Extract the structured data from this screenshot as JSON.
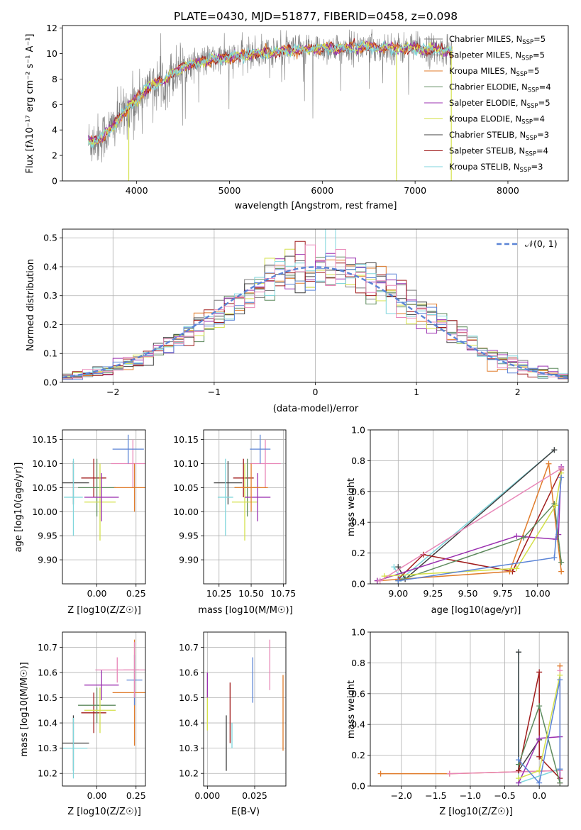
{
  "colors": {
    "chabrier_miles": "#7f7f7f",
    "salpeter_miles": "#8c8c8c",
    "kroupa_miles": "#e07b2a",
    "chabrier_elodie": "#5d8a5d",
    "salpeter_elodie": "#9b30b0",
    "kroupa_elodie": "#d4e04a",
    "chabrier_stelib": "#404040",
    "salpeter_stelib": "#a01c1c",
    "kroupa_stelib": "#7fd6dc",
    "pink": "#e887b8",
    "blue": "#5b84d6",
    "normal": "#5b84d6"
  },
  "chart_data": [
    {
      "id": "spectrum",
      "type": "line",
      "title": "PLATE=0430, MJD=51877, FIBERID=0458, z=0.098",
      "xlabel": "wavelength [Angstrom, rest frame]",
      "ylabel": "Flux [f_λ 10^-17 erg cm^-2 s^-1 A^-1]",
      "xlim": [
        3200,
        8650
      ],
      "ylim": [
        0,
        12.2
      ],
      "xticks": [
        "4000",
        "5000",
        "6000",
        "7000",
        "8000"
      ],
      "yticks": [
        "0",
        "2",
        "4",
        "6",
        "8",
        "10",
        "12"
      ],
      "legend_position": "right",
      "legend": [
        {
          "label": "Chabrier MILES, N_SSP=5",
          "color": "#7f7f7f"
        },
        {
          "label": "Salpeter MILES, N_SSP=5",
          "color": "#8c8c8c"
        },
        {
          "label": "Kroupa MILES, N_SSP=5",
          "color": "#e07b2a"
        },
        {
          "label": "Chabrier ELODIE, N_SSP=4",
          "color": "#5d8a5d"
        },
        {
          "label": "Salpeter ELODIE, N_SSP=5",
          "color": "#9b30b0"
        },
        {
          "label": "Kroupa ELODIE, N_SSP=4",
          "color": "#d4e04a"
        },
        {
          "label": "Chabrier STELIB, N_SSP=3",
          "color": "#404040"
        },
        {
          "label": "Salpeter STELIB, N_SSP=4",
          "color": "#a01c1c"
        },
        {
          "label": "Kroupa STELIB, N_SSP=3",
          "color": "#7fd6dc"
        }
      ],
      "model_curve": {
        "x": [
          3500,
          3600,
          3700,
          3800,
          3900,
          4000,
          4100,
          4200,
          4300,
          4400,
          4500,
          4600,
          4800,
          5000,
          5200,
          5400,
          5600,
          5800,
          6000,
          6200,
          6400,
          6600,
          6800,
          7000,
          7200,
          7400
        ],
        "y": [
          3.1,
          3.3,
          3.9,
          4.8,
          5.7,
          6.4,
          7.2,
          7.6,
          7.9,
          8.5,
          9.0,
          9.2,
          9.5,
          9.7,
          9.9,
          10.1,
          10.2,
          10.3,
          10.4,
          10.4,
          10.5,
          10.5,
          10.4,
          10.4,
          10.3,
          10.2
        ]
      },
      "dips": [
        {
          "x": 3915,
          "y": 0
        },
        {
          "x": 6800,
          "y": 0
        },
        {
          "x": 7390,
          "y": 0
        }
      ]
    },
    {
      "id": "residuals",
      "type": "histogram",
      "xlabel": "(data-model)/error",
      "ylabel": "Normed distribution",
      "xlim": [
        -2.5,
        2.5
      ],
      "ylim": [
        0,
        0.53
      ],
      "xticks": [
        "−2",
        "−1",
        "0",
        "1",
        "2"
      ],
      "yticks": [
        "0.0",
        "0.1",
        "0.2",
        "0.3",
        "0.4",
        "0.5"
      ],
      "legend": [
        {
          "label": "𝒩(0, 1)",
          "style": "dashed",
          "color": "#5b84d6"
        }
      ],
      "legend_position": "top-right",
      "bin_width": 0.1
    },
    {
      "id": "age_vs_z",
      "type": "errorbar",
      "xlabel": "Z [log10(Z/Z☉)]",
      "ylabel": "age [log10(age/yr)]",
      "xlim": [
        -0.22,
        0.31
      ],
      "ylim": [
        9.85,
        10.17
      ],
      "xticks": [
        "0.00",
        "0.25"
      ],
      "yticks": [
        "9.90",
        "9.95",
        "10.00",
        "10.05",
        "10.10",
        "10.15"
      ],
      "points": [
        {
          "x": -0.15,
          "y": 10.06,
          "xerr": 0.1,
          "yerr": 0.045,
          "color": "#404040"
        },
        {
          "x": -0.15,
          "y": 10.03,
          "xerr": 0.06,
          "yerr": 0.08,
          "color": "#7fd6dc"
        },
        {
          "x": -0.02,
          "y": 10.07,
          "xerr": 0.08,
          "yerr": 0.04,
          "color": "#a01c1c"
        },
        {
          "x": 0.0,
          "y": 10.05,
          "xerr": 0.12,
          "yerr": 0.06,
          "color": "#5d8a5d"
        },
        {
          "x": 0.02,
          "y": 10.02,
          "xerr": 0.1,
          "yerr": 0.08,
          "color": "#d4e04a"
        },
        {
          "x": 0.03,
          "y": 10.03,
          "xerr": 0.11,
          "yerr": 0.05,
          "color": "#9b30b0"
        },
        {
          "x": 0.23,
          "y": 10.1,
          "xerr": 0.14,
          "yerr": 0.05,
          "color": "#e887b8"
        },
        {
          "x": 0.24,
          "y": 10.05,
          "xerr": 0.13,
          "yerr": 0.05,
          "color": "#e07b2a"
        },
        {
          "x": 0.2,
          "y": 10.13,
          "xerr": 0.1,
          "yerr": 0.03,
          "color": "#5b84d6"
        }
      ]
    },
    {
      "id": "age_vs_mass",
      "type": "errorbar",
      "xlabel": "mass [log10(M/M☉)]",
      "ylabel": "",
      "xlim": [
        10.13,
        10.77
      ],
      "ylim": [
        9.85,
        10.17
      ],
      "xticks": [
        "10.25",
        "10.50",
        "10.75"
      ],
      "yticks": [
        "9.90",
        "9.95",
        "10.00",
        "10.05",
        "10.10",
        "10.15"
      ],
      "points": [
        {
          "x": 10.32,
          "y": 10.06,
          "xerr": 0.11,
          "yerr": 0.045,
          "color": "#404040"
        },
        {
          "x": 10.3,
          "y": 10.03,
          "xerr": 0.06,
          "yerr": 0.08,
          "color": "#7fd6dc"
        },
        {
          "x": 10.44,
          "y": 10.07,
          "xerr": 0.08,
          "yerr": 0.04,
          "color": "#a01c1c"
        },
        {
          "x": 10.47,
          "y": 10.05,
          "xerr": 0.1,
          "yerr": 0.06,
          "color": "#5d8a5d"
        },
        {
          "x": 10.45,
          "y": 10.02,
          "xerr": 0.1,
          "yerr": 0.08,
          "color": "#d4e04a"
        },
        {
          "x": 10.55,
          "y": 10.03,
          "xerr": 0.1,
          "yerr": 0.05,
          "color": "#9b30b0"
        },
        {
          "x": 10.61,
          "y": 10.1,
          "xerr": 0.12,
          "yerr": 0.05,
          "color": "#e887b8"
        },
        {
          "x": 10.5,
          "y": 10.05,
          "xerr": 0.13,
          "yerr": 0.05,
          "color": "#e07b2a"
        },
        {
          "x": 10.57,
          "y": 10.13,
          "xerr": 0.08,
          "yerr": 0.03,
          "color": "#5b84d6"
        }
      ]
    },
    {
      "id": "mass_weight_vs_age",
      "type": "line",
      "xlabel": "age [log10(age/yr)]",
      "ylabel": "mass weight",
      "xlim": [
        8.8,
        10.22
      ],
      "ylim": [
        0,
        1.0
      ],
      "xticks": [
        "9.00",
        "9.25",
        "9.50",
        "9.75",
        "10.00"
      ],
      "yticks": [
        "0.0",
        "0.2",
        "0.4",
        "0.6",
        "0.8",
        "1.0"
      ],
      "series": [
        {
          "color": "#7fd6dc",
          "x": [
            8.97,
            9.02,
            10.12
          ],
          "y": [
            0.11,
            0.03,
            0.87
          ]
        },
        {
          "color": "#404040",
          "x": [
            9.0,
            9.05,
            10.12
          ],
          "y": [
            0.11,
            0.03,
            0.87
          ]
        },
        {
          "color": "#a01c1c",
          "x": [
            9.0,
            9.18,
            9.82,
            10.17
          ],
          "y": [
            0.03,
            0.19,
            0.08,
            0.74
          ]
        },
        {
          "color": "#e07b2a",
          "x": [
            8.85,
            9.8,
            10.08,
            10.17
          ],
          "y": [
            0.02,
            0.08,
            0.78,
            0.08
          ]
        },
        {
          "color": "#9b30b0",
          "x": [
            8.85,
            9.85,
            10.13,
            10.15,
            10.17
          ],
          "y": [
            0.02,
            0.31,
            0.29,
            0.32,
            0.76
          ]
        },
        {
          "color": "#5d8a5d",
          "x": [
            9.0,
            9.9,
            10.12,
            10.17
          ],
          "y": [
            0.02,
            0.3,
            0.52,
            0.14
          ]
        },
        {
          "color": "#d4e04a",
          "x": [
            8.9,
            9.85,
            10.13,
            10.17
          ],
          "y": [
            0.05,
            0.1,
            0.51,
            0.72
          ]
        },
        {
          "color": "#5b84d6",
          "x": [
            9.0,
            10.12,
            10.17
          ],
          "y": [
            0.02,
            0.17,
            0.69
          ]
        },
        {
          "color": "#e887b8",
          "x": [
            8.87,
            10.17
          ],
          "y": [
            0.02,
            0.75
          ]
        }
      ]
    },
    {
      "id": "mass_vs_z",
      "type": "errorbar",
      "xlabel": "Z [log10(Z/Z☉)]",
      "ylabel": "mass [log10(M/M☉)]",
      "xlim": [
        -0.22,
        0.31
      ],
      "ylim": [
        10.15,
        10.76
      ],
      "xticks": [
        "0.00",
        "0.25"
      ],
      "yticks": [
        "10.2",
        "10.3",
        "10.4",
        "10.5",
        "10.6",
        "10.7"
      ],
      "points": [
        {
          "x": -0.15,
          "y": 10.32,
          "xerr": 0.1,
          "yerr": 0.11,
          "color": "#404040"
        },
        {
          "x": -0.15,
          "y": 10.3,
          "xerr": 0.09,
          "yerr": 0.12,
          "color": "#7fd6dc"
        },
        {
          "x": -0.02,
          "y": 10.44,
          "xerr": 0.08,
          "yerr": 0.08,
          "color": "#a01c1c"
        },
        {
          "x": 0.0,
          "y": 10.47,
          "xerr": 0.12,
          "yerr": 0.07,
          "color": "#5d8a5d"
        },
        {
          "x": 0.02,
          "y": 10.45,
          "xerr": 0.1,
          "yerr": 0.09,
          "color": "#d4e04a"
        },
        {
          "x": 0.03,
          "y": 10.55,
          "xerr": 0.11,
          "yerr": 0.06,
          "color": "#9b30b0"
        },
        {
          "x": 0.13,
          "y": 10.61,
          "xerr": 0.14,
          "yerr": 0.05,
          "color": "#e887b8"
        },
        {
          "x": 0.24,
          "y": 10.52,
          "xerr": 0.14,
          "yerr": 0.21,
          "color": "#e07b2a"
        },
        {
          "x": 0.24,
          "y": 10.57,
          "xerr": 0.05,
          "yerr": 0.1,
          "color": "#5b84d6"
        },
        {
          "x": 0.24,
          "y": 10.61,
          "xerr": 0.07,
          "yerr": 0.11,
          "color": "#e887b8"
        }
      ]
    },
    {
      "id": "mass_vs_ebv",
      "type": "errorbar",
      "xlabel": "E(B-V)",
      "ylabel": "",
      "xlim": [
        -0.002,
        0.0415
      ],
      "ylim": [
        10.15,
        10.76
      ],
      "xticks": [
        "0.000",
        "0.025"
      ],
      "yticks": [
        "10.2",
        "10.3",
        "10.4",
        "10.5",
        "10.6",
        "10.7"
      ],
      "points": [
        {
          "x": 0.0,
          "y": 10.45,
          "yerr": 0.08,
          "color": "#d4e04a"
        },
        {
          "x": 0.0,
          "y": 10.55,
          "yerr": 0.05,
          "color": "#9b30b0"
        },
        {
          "x": 0.01,
          "y": 10.32,
          "yerr": 0.11,
          "color": "#404040"
        },
        {
          "x": 0.012,
          "y": 10.44,
          "yerr": 0.12,
          "color": "#a01c1c"
        },
        {
          "x": 0.013,
          "y": 10.35,
          "yerr": 0.05,
          "color": "#7fd6dc"
        },
        {
          "x": 0.024,
          "y": 10.57,
          "yerr": 0.09,
          "color": "#5b84d6"
        },
        {
          "x": 0.033,
          "y": 10.63,
          "yerr": 0.1,
          "color": "#e887b8"
        },
        {
          "x": 0.04,
          "y": 10.44,
          "yerr": 0.15,
          "color": "#e07b2a"
        }
      ]
    },
    {
      "id": "mass_weight_vs_z",
      "type": "line",
      "xlabel": "Z [log10(Z/Z☉)]",
      "ylabel": "mass weight",
      "xlim": [
        -2.45,
        0.42
      ],
      "ylim": [
        0,
        1.0
      ],
      "xticks": [
        "−2.0",
        "−1.5",
        "−1.0",
        "−0.5",
        "0.0"
      ],
      "yticks": [
        "0.0",
        "0.2",
        "0.4",
        "0.6",
        "0.8",
        "1.0"
      ],
      "series": [
        {
          "color": "#e07b2a",
          "x": [
            -2.3,
            -1.3,
            0.3,
            0.3,
            0.3
          ],
          "y": [
            0.08,
            0.08,
            0.1,
            0.78,
            0.02
          ]
        },
        {
          "color": "#e887b8",
          "x": [
            -1.3,
            0.3,
            0.3
          ],
          "y": [
            0.08,
            0.1,
            0.75
          ]
        },
        {
          "color": "#7fd6dc",
          "x": [
            -0.3,
            -0.3,
            0.3
          ],
          "y": [
            0.87,
            0.02,
            0.11
          ]
        },
        {
          "color": "#404040",
          "x": [
            -0.3,
            -0.3,
            0.0
          ],
          "y": [
            0.87,
            0.1,
            0.3
          ]
        },
        {
          "color": "#a01c1c",
          "x": [
            -0.3,
            0.0,
            0.0,
            0.3
          ],
          "y": [
            0.1,
            0.74,
            0.19,
            0.05
          ]
        },
        {
          "color": "#9b30b0",
          "x": [
            -0.3,
            0.0,
            0.3,
            0.3
          ],
          "y": [
            0.02,
            0.31,
            0.32,
            0.02
          ]
        },
        {
          "color": "#5d8a5d",
          "x": [
            -0.3,
            0.0,
            0.3
          ],
          "y": [
            0.14,
            0.52,
            0.02
          ]
        },
        {
          "color": "#d4e04a",
          "x": [
            -0.3,
            0.0,
            0.3
          ],
          "y": [
            0.05,
            0.1,
            0.72
          ]
        },
        {
          "color": "#5b84d6",
          "x": [
            -0.3,
            0.0,
            0.3,
            0.3
          ],
          "y": [
            0.17,
            0.02,
            0.69,
            0.11
          ]
        }
      ]
    }
  ]
}
